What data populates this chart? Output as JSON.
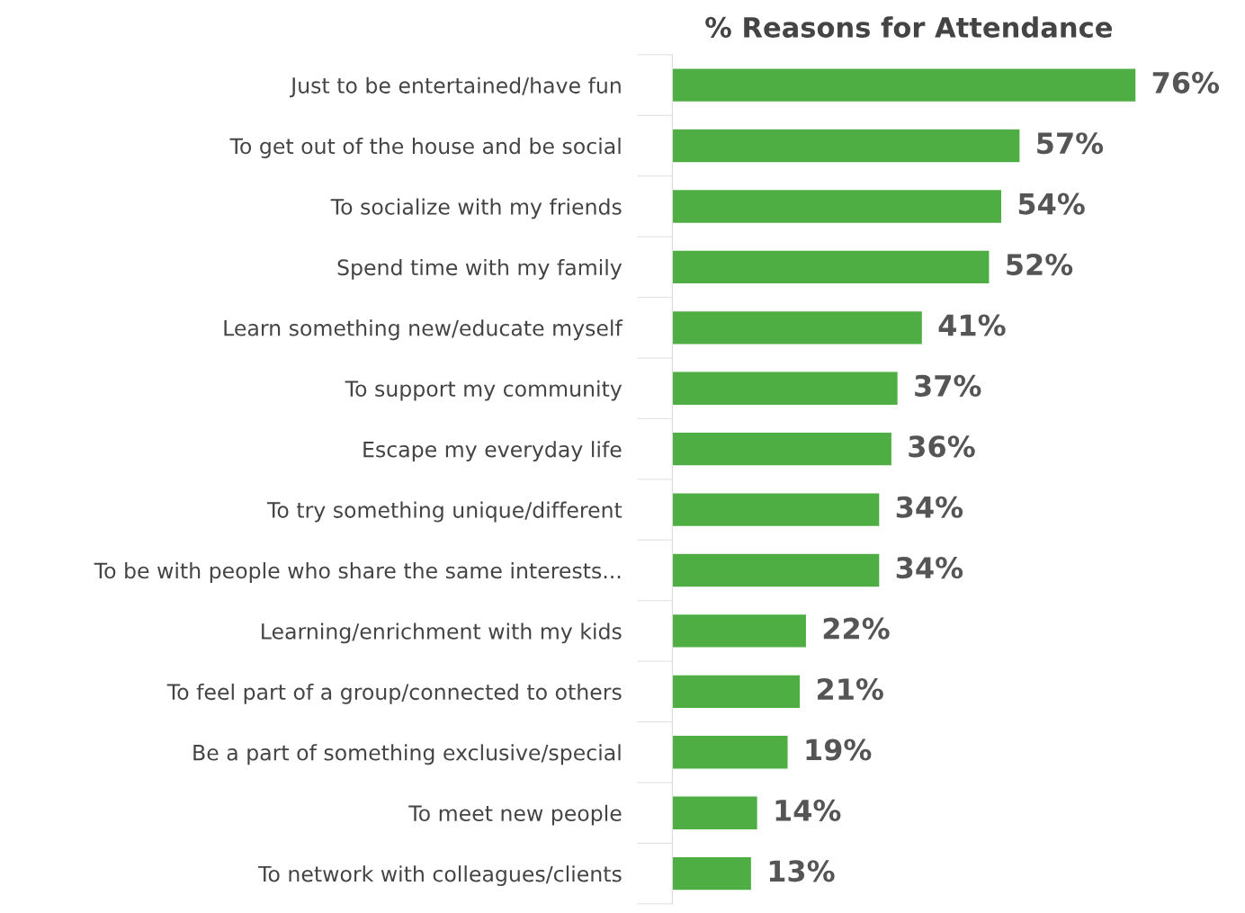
{
  "chart_data": {
    "type": "bar",
    "orientation": "horizontal",
    "title": "% Reasons for Attendance",
    "categories": [
      "Just to be entertained/have fun",
      "To get out of the house and be social",
      "To socialize with my friends",
      "Spend time with my family",
      "Learn something new/educate myself",
      "To support my community",
      "Escape my everyday life",
      "To try something unique/different",
      "To be with people who share the same interests...",
      "Learning/enrichment with my kids",
      "To feel part of a group/connected to others",
      "Be a part of something exclusive/special",
      "To meet new people",
      "To network with colleagues/clients"
    ],
    "values": [
      76,
      57,
      54,
      52,
      41,
      37,
      36,
      34,
      34,
      22,
      21,
      19,
      14,
      13
    ],
    "value_labels": [
      "76%",
      "57%",
      "54%",
      "52%",
      "41%",
      "37%",
      "36%",
      "34%",
      "34%",
      "22%",
      "21%",
      "19%",
      "14%",
      "13%"
    ],
    "color": "#4fae43",
    "grid": false,
    "legend": false
  }
}
